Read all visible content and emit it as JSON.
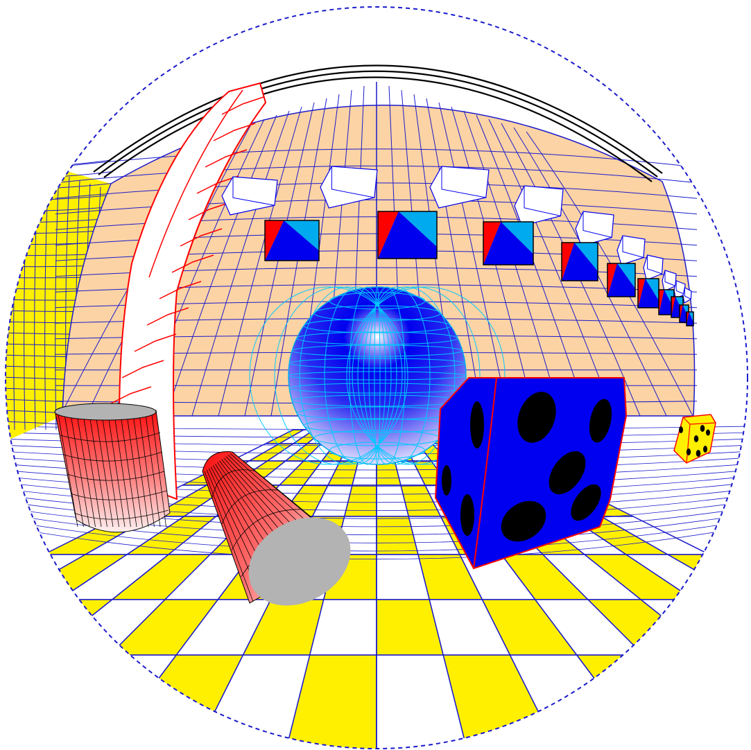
{
  "scene": {
    "kind": "fisheye-render",
    "colors": {
      "background": "#ffffff",
      "grid_line": "#1a1acc",
      "peach_wall": "#fcd3a4",
      "yellow": "#fff000",
      "white": "#ffffff",
      "red": "#ff0000",
      "light_blue": "#00aaee",
      "dark_blue": "#0000ee",
      "die_blue": "#0000f0",
      "gray": "#b3b3b3",
      "black": "#000000"
    },
    "objects": [
      {
        "name": "fisheye-boundary-circle",
        "style": "dashed",
        "color": "#1a1acc"
      },
      {
        "name": "ceiling-arc",
        "color": "#000000"
      },
      {
        "name": "back-wall",
        "pattern": "grid",
        "color": "#fcd3a4"
      },
      {
        "name": "left-wall",
        "pattern": "grid",
        "color": "#fff000"
      },
      {
        "name": "checkered-floor",
        "pattern": "checkerboard",
        "colors": [
          "#fff000",
          "#ffffff"
        ]
      },
      {
        "name": "white-block-row",
        "count": 10
      },
      {
        "name": "triangle-tile-row",
        "count": 10,
        "colors": [
          "#ff0000",
          "#00aaee",
          "#0000ee"
        ]
      },
      {
        "name": "red-outlined-pillar"
      },
      {
        "name": "blue-sphere",
        "gradient": [
          "#0000ee",
          "#ffffff"
        ]
      },
      {
        "name": "upright-red-cylinder",
        "gradient": [
          "#ff0000",
          "#ffffff"
        ]
      },
      {
        "name": "tilted-red-cylinder",
        "gradient": [
          "#ff0000",
          "#ffffff"
        ]
      },
      {
        "name": "large-blue-die",
        "color": "#0000f0"
      },
      {
        "name": "small-yellow-die",
        "color": "#fff000"
      }
    ]
  }
}
